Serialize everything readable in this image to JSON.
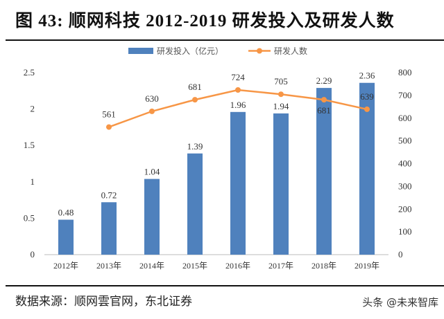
{
  "title": "图  43: 顺网科技 2012-2019 研发投入及研发人数",
  "source": "数据来源：顺网雲官网，东北证券",
  "watermark": "头条 @未来智库",
  "colors": {
    "bar": "#4f81bd",
    "line": "#f79646"
  },
  "chart_data": {
    "type": "bar+line",
    "categories": [
      "2012年",
      "2013年",
      "2014年",
      "2015年",
      "2016年",
      "2017年",
      "2018年",
      "2019年"
    ],
    "series": [
      {
        "name": "研发投入（亿元）",
        "type": "bar",
        "axis": "left",
        "values": [
          0.48,
          0.72,
          1.04,
          1.39,
          1.96,
          1.94,
          2.29,
          2.36
        ]
      },
      {
        "name": "研发人数",
        "type": "line",
        "axis": "right",
        "values": [
          null,
          561,
          630,
          681,
          724,
          705,
          681,
          639
        ]
      }
    ],
    "y_left": {
      "range": [
        0,
        2.5
      ],
      "ticks": [
        "0",
        "0.5",
        "1",
        "1.5",
        "2",
        "2.5"
      ]
    },
    "y_right": {
      "range": [
        0,
        800
      ],
      "ticks": [
        "0",
        "100",
        "200",
        "300",
        "400",
        "500",
        "600",
        "700",
        "800"
      ]
    },
    "legend": "top",
    "grid": false
  }
}
